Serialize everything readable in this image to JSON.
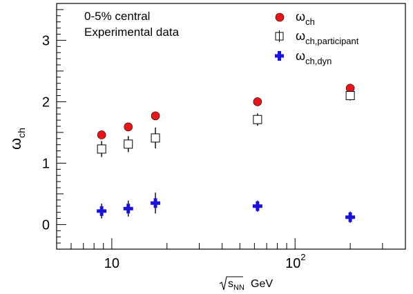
{
  "chart_data": {
    "type": "scatter",
    "x_scale": "log",
    "xlim": [
      5,
      400
    ],
    "ylim": [
      -0.4,
      3.6
    ],
    "grid": false,
    "legend_position": "top-right",
    "x_tick_labels": [
      {
        "value": 10,
        "base": "10",
        "exp": ""
      },
      {
        "value": 100,
        "base": "10",
        "exp": "2"
      }
    ],
    "y_tick_labels": [
      {
        "value": 0,
        "label": "0"
      },
      {
        "value": 1,
        "label": "1"
      },
      {
        "value": 2,
        "label": "2"
      },
      {
        "value": 3,
        "label": "3"
      }
    ],
    "annotations": [
      "0-5% central",
      "Experimental data"
    ],
    "ylabel": {
      "main": "ω",
      "sub": "ch"
    },
    "xlabel": {
      "main": "s",
      "sub": "NN",
      "unit": "GeV"
    },
    "series": [
      {
        "name": {
          "main": "ω",
          "sub": "ch"
        },
        "marker": "circle",
        "color": "#e8161a",
        "x": [
          8.8,
          12.3,
          17.3,
          62.4,
          200
        ],
        "y": [
          1.46,
          1.59,
          1.77,
          2.0,
          2.22
        ],
        "yerr": [
          0,
          0,
          0,
          0,
          0
        ]
      },
      {
        "name": {
          "main": "ω",
          "sub": "ch,participant"
        },
        "marker": "open-square",
        "color": "#000000",
        "x": [
          8.8,
          12.3,
          17.3,
          62.4,
          200
        ],
        "y": [
          1.23,
          1.31,
          1.41,
          1.71,
          2.1
        ],
        "yerr": [
          0.13,
          0.13,
          0.17,
          0.1,
          0.08
        ]
      },
      {
        "name": {
          "main": "ω",
          "sub": "ch,dyn"
        },
        "marker": "cross",
        "color": "#1a12d6",
        "x": [
          8.8,
          12.3,
          17.3,
          62.4,
          200
        ],
        "y": [
          0.22,
          0.26,
          0.35,
          0.3,
          0.12
        ],
        "yerr": [
          0.12,
          0.13,
          0.17,
          0.09,
          0.09
        ]
      }
    ]
  }
}
